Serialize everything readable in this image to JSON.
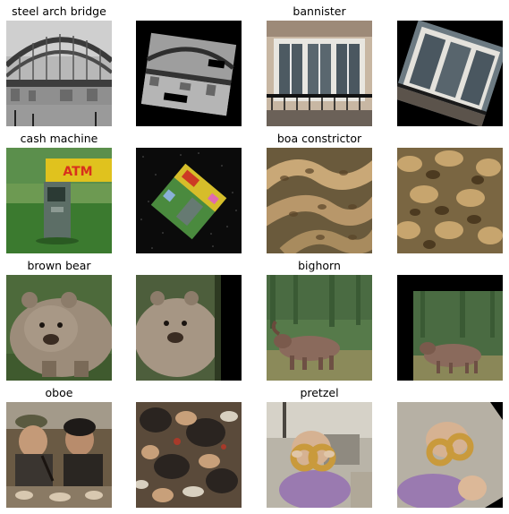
{
  "figure": {
    "rows": [
      {
        "left_label": "steel arch bridge",
        "right_label": "bannister",
        "left_original": {
          "name": "steel-arch-bridge-photo",
          "kind": "bridge"
        },
        "left_augmented": {
          "name": "steel-arch-bridge-augmented",
          "kind": "bridge-rot"
        },
        "right_original": {
          "name": "bannister-photo",
          "kind": "bannister"
        },
        "right_augmented": {
          "name": "bannister-augmented",
          "kind": "bannister-rot"
        }
      },
      {
        "left_label": "cash machine",
        "right_label": "boa constrictor",
        "left_original": {
          "name": "cash-machine-photo",
          "kind": "atm"
        },
        "left_augmented": {
          "name": "cash-machine-augmented",
          "kind": "atm-diamond"
        },
        "right_original": {
          "name": "boa-constrictor-photo",
          "kind": "boa"
        },
        "right_augmented": {
          "name": "boa-constrictor-augmented",
          "kind": "boa-zoom"
        }
      },
      {
        "left_label": "brown bear",
        "right_label": "bighorn",
        "left_original": {
          "name": "brown-bear-photo",
          "kind": "bear"
        },
        "left_augmented": {
          "name": "brown-bear-augmented",
          "kind": "bear-shift"
        },
        "right_original": {
          "name": "bighorn-photo",
          "kind": "bighorn"
        },
        "right_augmented": {
          "name": "bighorn-augmented",
          "kind": "bighorn-shift"
        }
      },
      {
        "left_label": "oboe",
        "right_label": "pretzel",
        "left_original": {
          "name": "oboe-photo",
          "kind": "oboe"
        },
        "left_augmented": {
          "name": "oboe-augmented",
          "kind": "oboe-zoom"
        },
        "right_original": {
          "name": "pretzel-photo",
          "kind": "pretzel"
        },
        "right_augmented": {
          "name": "pretzel-augmented",
          "kind": "pretzel-rot"
        }
      }
    ]
  }
}
